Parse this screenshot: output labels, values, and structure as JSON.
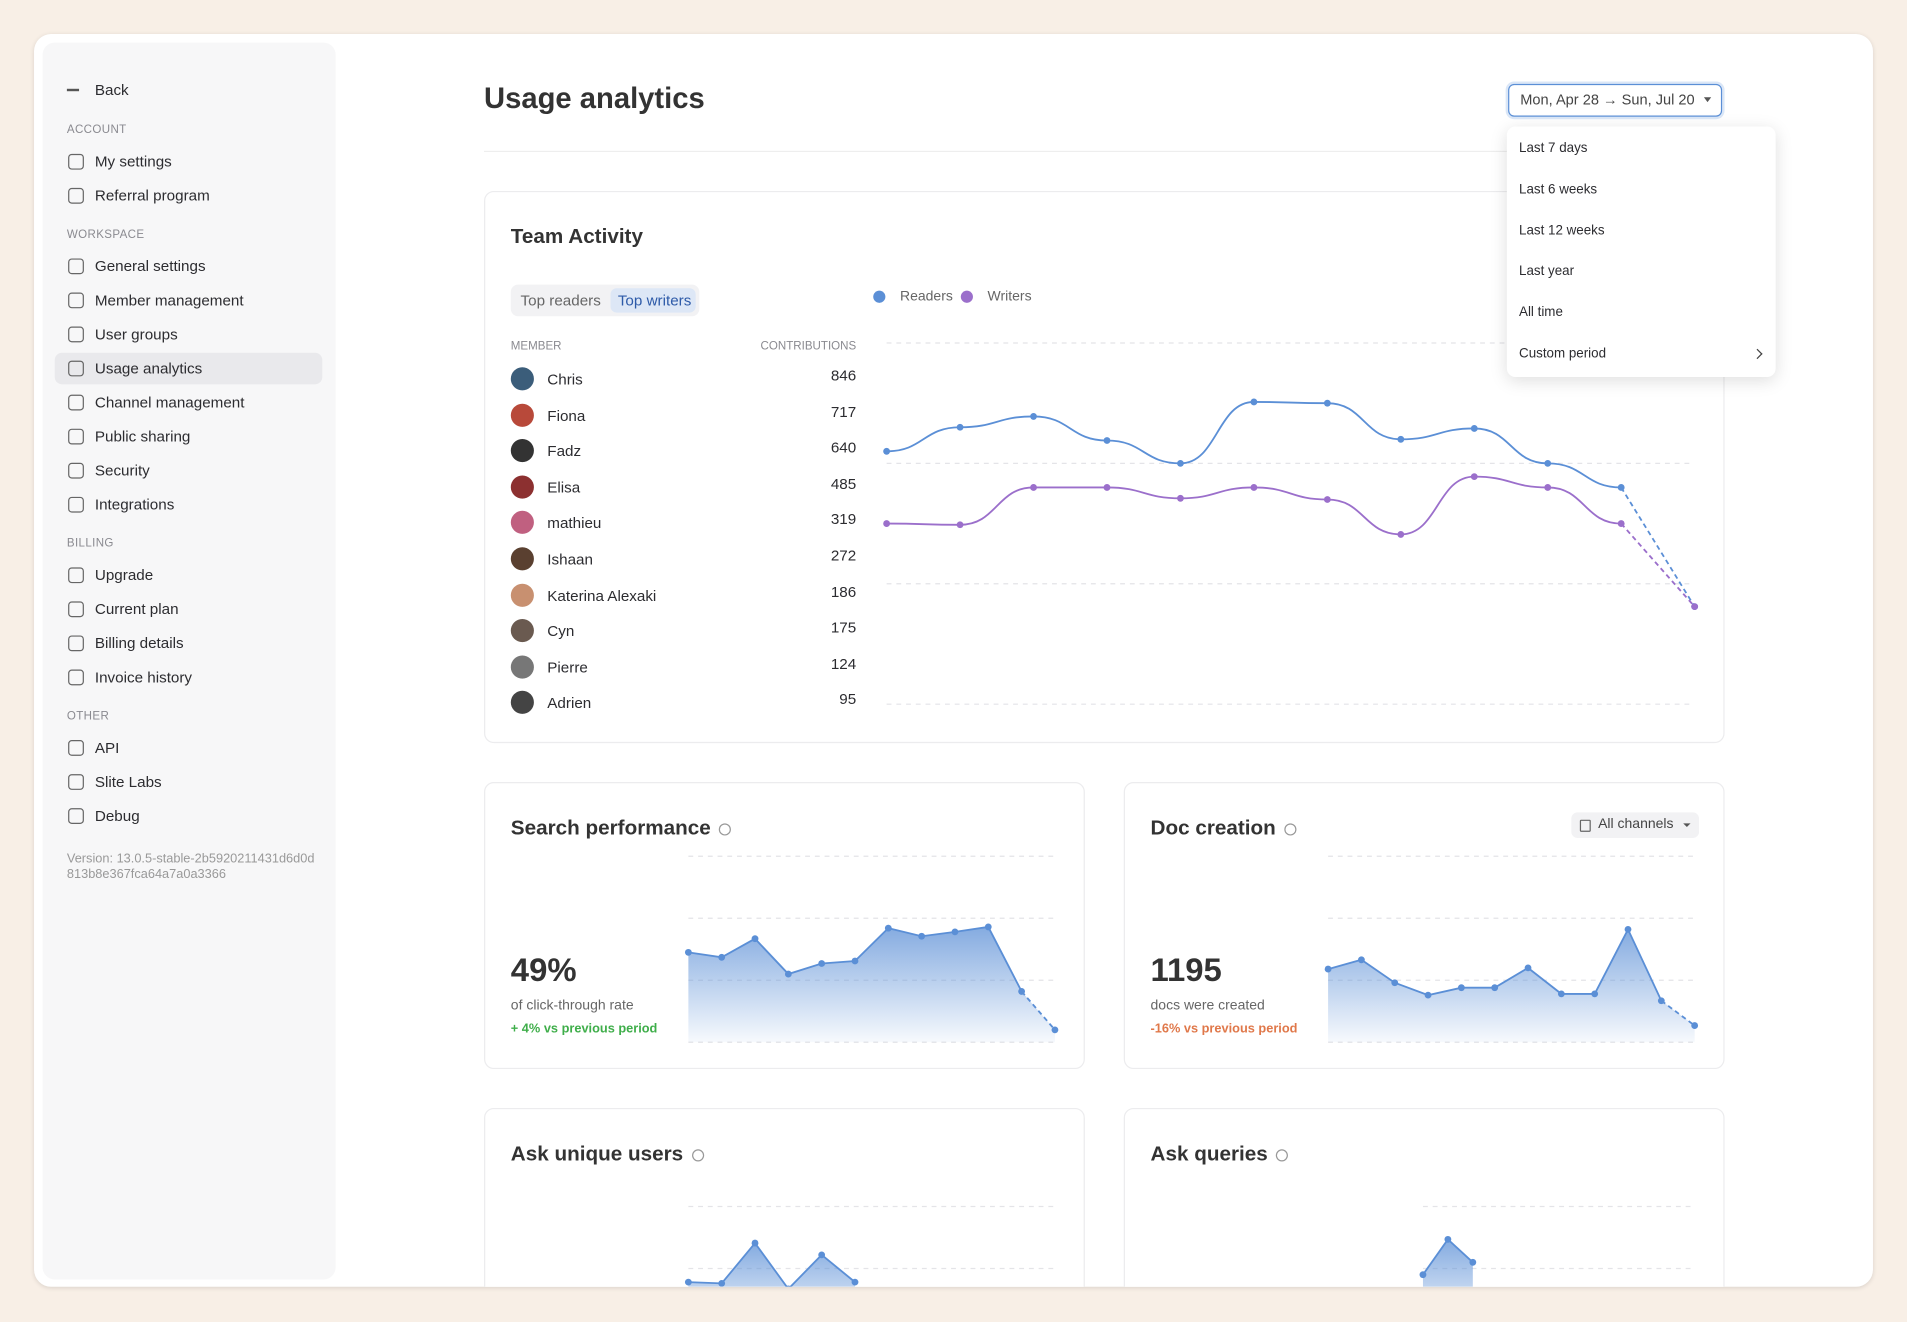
{
  "sidebar": {
    "back": "Back",
    "sections": [
      {
        "heading": "ACCOUNT",
        "items": [
          "My settings",
          "Referral program"
        ]
      },
      {
        "heading": "WORKSPACE",
        "items": [
          "General settings",
          "Member management",
          "User groups",
          "Usage analytics",
          "Channel management",
          "Public sharing",
          "Security",
          "Integrations"
        ]
      },
      {
        "heading": "BILLING",
        "items": [
          "Upgrade",
          "Current plan",
          "Billing details",
          "Invoice history"
        ]
      },
      {
        "heading": "OTHER",
        "items": [
          "API",
          "Slite Labs",
          "Debug"
        ]
      }
    ],
    "version": "Version: 13.0.5-stable-2b5920211431d6d0d813b8e367fca64a7a0a3366"
  },
  "header": {
    "title": "Usage analytics",
    "date_range": "Mon, Apr 28 → Sun, Jul 20"
  },
  "dropdown": {
    "options": [
      "Last 7 days",
      "Last 6 weeks",
      "Last 12 weeks",
      "Last year",
      "All time",
      "Custom period"
    ]
  },
  "team_activity": {
    "title": "Team Activity",
    "tabs": [
      "Top readers",
      "Top writers"
    ],
    "columns": [
      "MEMBER",
      "CONTRIBUTIONS"
    ],
    "members": [
      {
        "name": "Chris",
        "contributions": 846
      },
      {
        "name": "Fiona",
        "contributions": 717
      },
      {
        "name": "Fadz",
        "contributions": 640
      },
      {
        "name": "Elisa",
        "contributions": 485
      },
      {
        "name": "mathieu",
        "contributions": 319
      },
      {
        "name": "Ishaan",
        "contributions": 272
      },
      {
        "name": "Katerina Alexaki",
        "contributions": 186
      },
      {
        "name": "Cyn",
        "contributions": 175
      },
      {
        "name": "Pierre",
        "contributions": 124
      },
      {
        "name": "Adrien",
        "contributions": 95
      }
    ]
  },
  "cards": [
    {
      "title": "Search performance",
      "metric": "49%",
      "caption": "of click-through rate",
      "change": "+ 4% vs previous period",
      "change_color": "#3fae4a"
    },
    {
      "title": "Doc creation",
      "filter": "All channels",
      "metric": "1195",
      "caption": "docs were created",
      "change": "-16% vs previous period",
      "change_color": "#e0784a"
    },
    {
      "title": "Ask unique users"
    },
    {
      "title": "Ask queries"
    }
  ],
  "chart_data": [
    {
      "type": "line",
      "ylim": [
        0,
        3
      ],
      "grid": true,
      "dashed_last": true,
      "series": [
        {
          "name": "Readers",
          "color": "#5b8fd6",
          "values": [
            2.1,
            2.3,
            2.39,
            2.19,
            2.0,
            2.51,
            2.5,
            2.2,
            2.29,
            2.0,
            1.8,
            0.81
          ]
        },
        {
          "name": "Writers",
          "color": "#9b6fcb",
          "values": [
            1.5,
            1.49,
            1.8,
            1.8,
            1.71,
            1.8,
            1.7,
            1.41,
            1.89,
            1.8,
            1.5,
            0.81
          ]
        }
      ]
    },
    {
      "type": "area",
      "ylim": [
        0,
        3
      ],
      "grid": true,
      "dashed_last": true,
      "color": "#5b8fd6",
      "values": [
        1.45,
        1.37,
        1.67,
        1.1,
        1.27,
        1.31,
        1.84,
        1.71,
        1.78,
        1.86,
        0.82,
        0.2
      ]
    },
    {
      "type": "area",
      "ylim": [
        0,
        3
      ],
      "grid": true,
      "dashed_last": true,
      "color": "#5b8fd6",
      "values": [
        1.18,
        1.33,
        0.96,
        0.76,
        0.88,
        0.88,
        1.2,
        0.78,
        0.78,
        1.82,
        0.67,
        0.27
      ]
    },
    {
      "type": "area",
      "ylim": [
        0,
        3
      ],
      "grid": true,
      "dashed_last": false,
      "color": "#5b8fd6",
      "values": [
        0.78,
        0.76,
        1.41,
        0.67,
        1.22,
        0.78
      ]
    },
    {
      "type": "area",
      "ylim": [
        0,
        3
      ],
      "grid": true,
      "dashed_last": false,
      "color": "#5b8fd6",
      "values": [
        0.9,
        1.47,
        1.1
      ]
    }
  ]
}
